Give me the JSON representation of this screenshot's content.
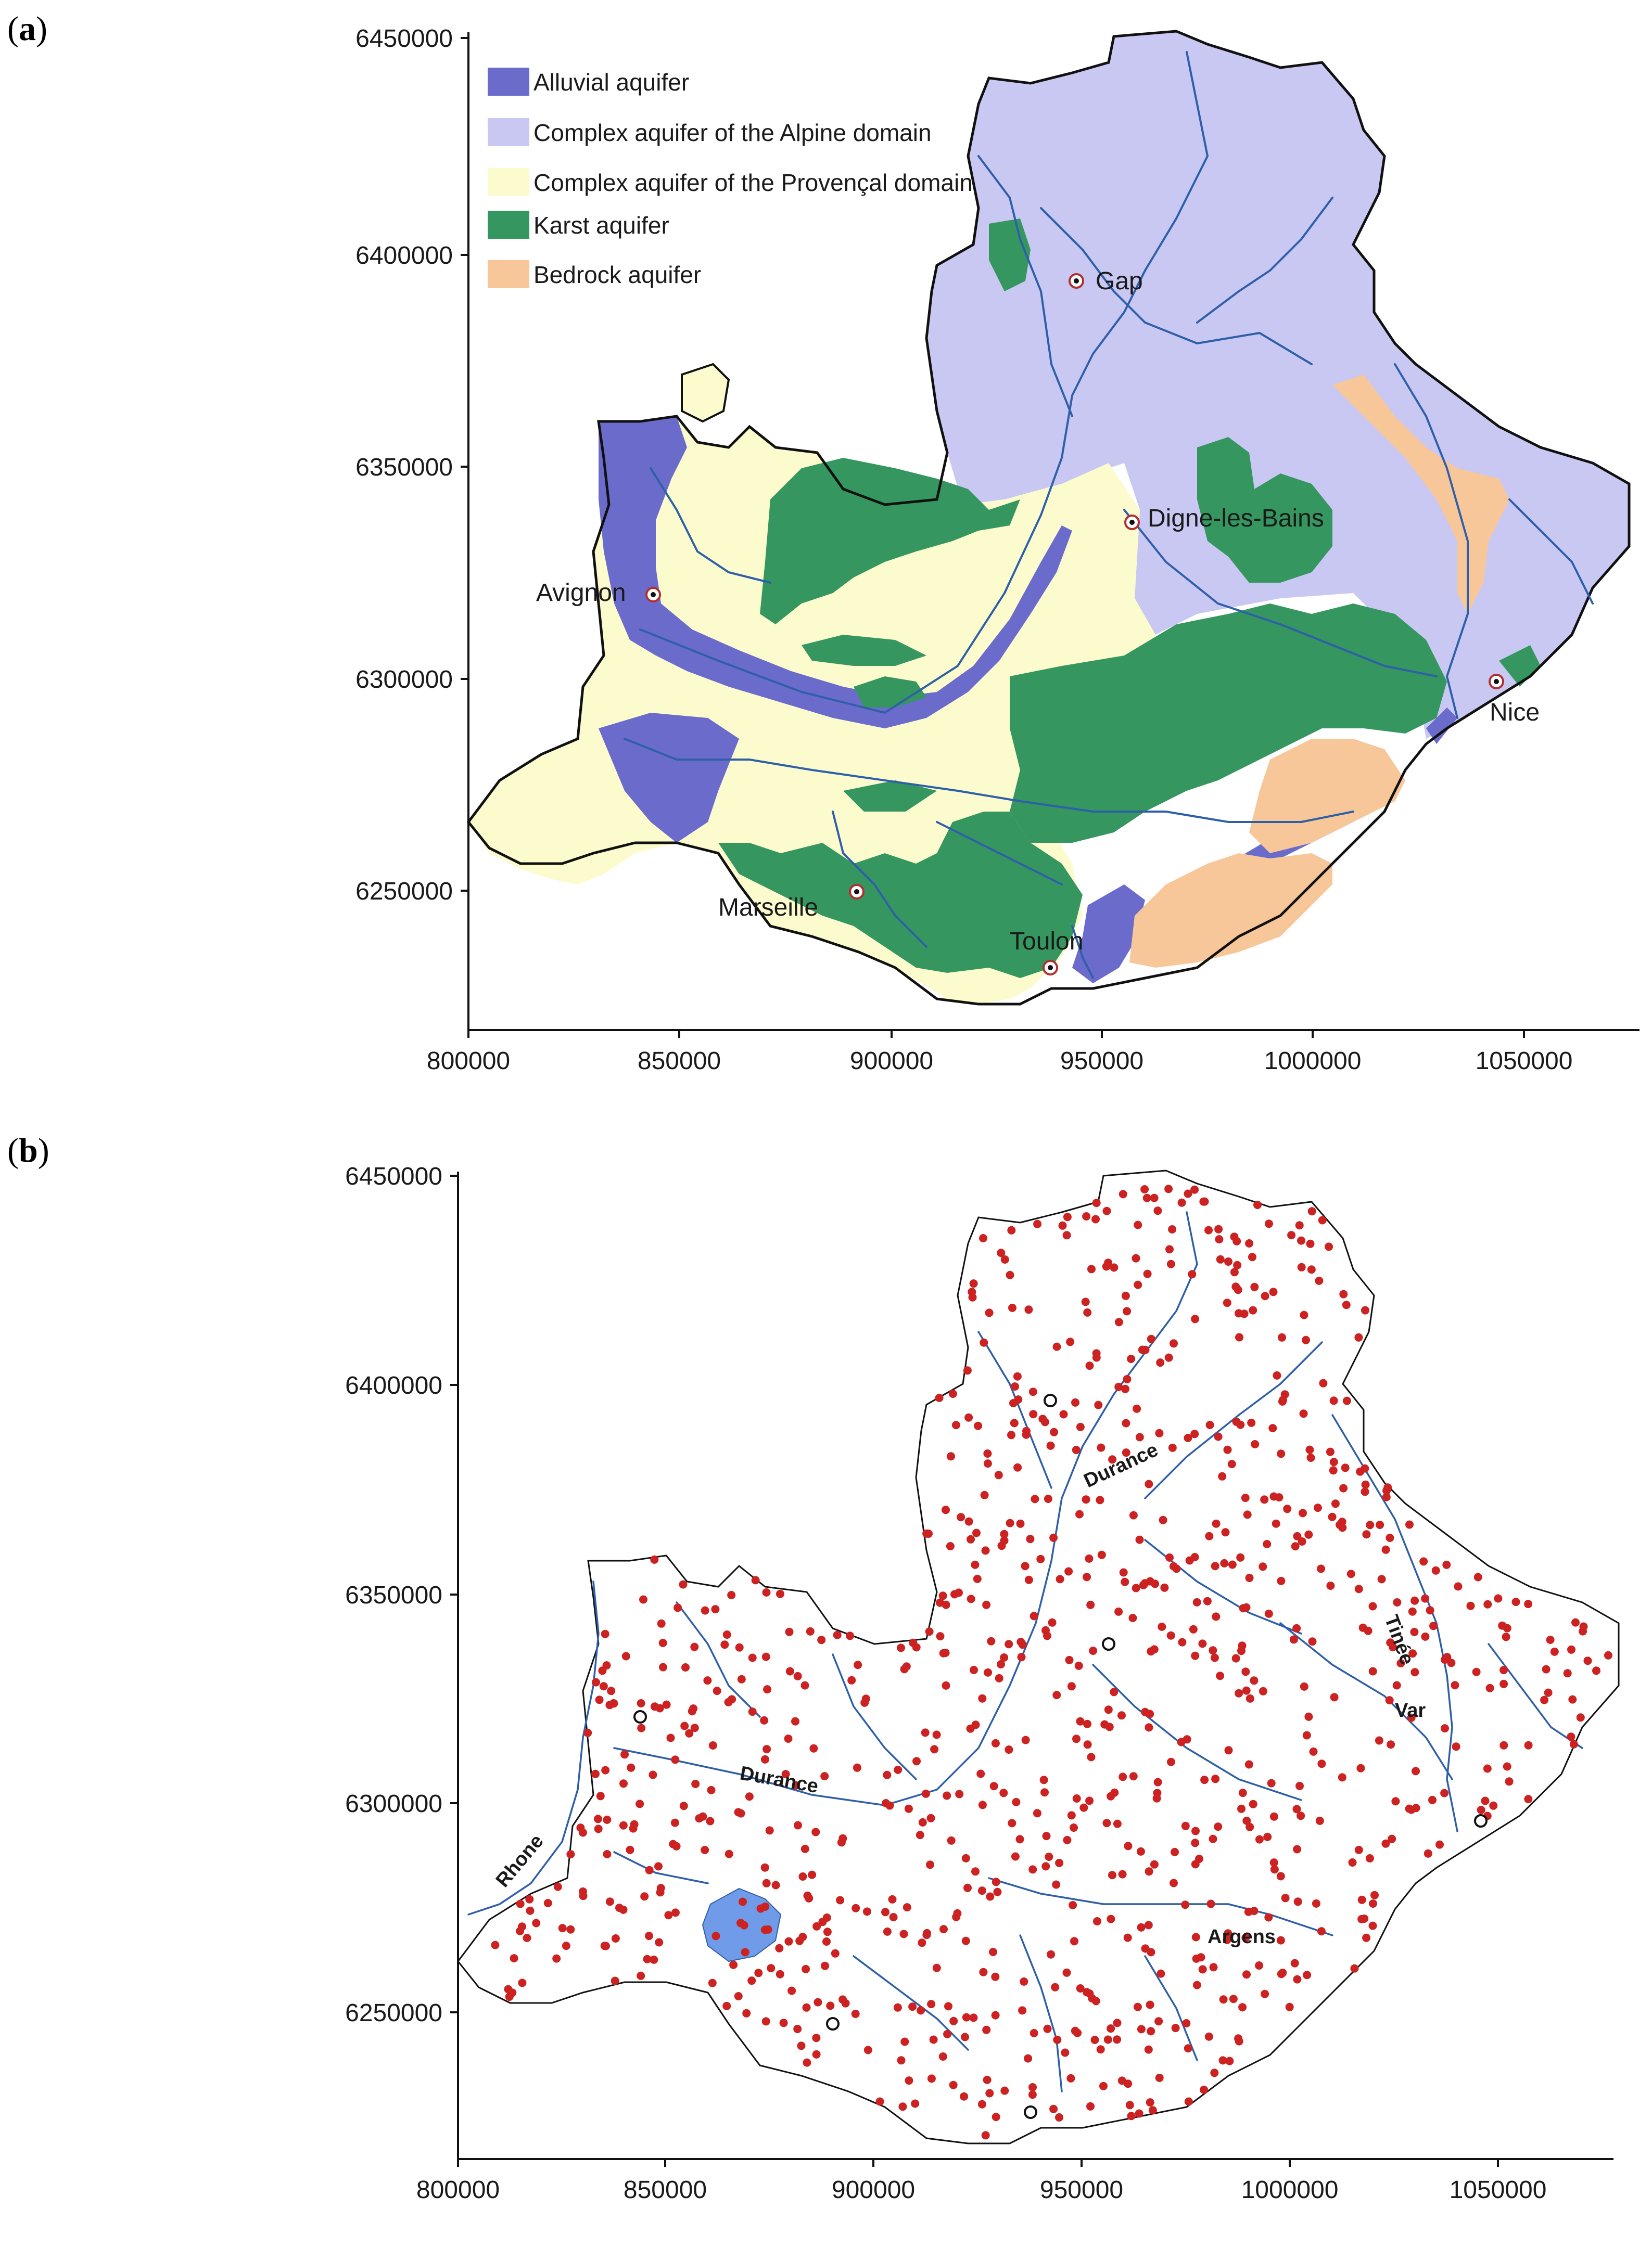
{
  "panels": [
    {
      "label_open": "(",
      "label_letter": "a",
      "label_close": ")",
      "x_ticks": [
        "800000",
        "850000",
        "900000",
        "950000",
        "1000000",
        "1050000"
      ],
      "y_ticks": [
        "6450000",
        "6400000",
        "6350000",
        "6300000",
        "6250000"
      ],
      "legend": [
        {
          "label": "Alluvial aquifer",
          "color": "#6b6bcc"
        },
        {
          "label": "Complex aquifer of the Alpine domain",
          "color": "#c8c8f2"
        },
        {
          "label": "Complex aquifer of the Provençal domain",
          "color": "#fbfbcd"
        },
        {
          "label": "Karst aquifer",
          "color": "#35965f"
        },
        {
          "label": "Bedrock aquifer",
          "color": "#f7c79a"
        }
      ],
      "cities": [
        "Gap",
        "Digne-les-Bains",
        "Avignon",
        "Nice",
        "Marseille",
        "Toulon"
      ]
    },
    {
      "label_open": "(",
      "label_letter": "b",
      "label_close": ")",
      "x_ticks": [
        "800000",
        "850000",
        "900000",
        "950000",
        "1000000",
        "1050000"
      ],
      "y_ticks": [
        "6450000",
        "6400000",
        "6350000",
        "6300000",
        "6250000"
      ],
      "rivers": [
        "Durance",
        "Tinée",
        "Var",
        "Durance",
        "Rhone",
        "Argens"
      ]
    }
  ],
  "colors": {
    "river": "#2e5fa8",
    "point": "#cc2222",
    "lake": "#6f9be8",
    "outline": "#111111"
  }
}
